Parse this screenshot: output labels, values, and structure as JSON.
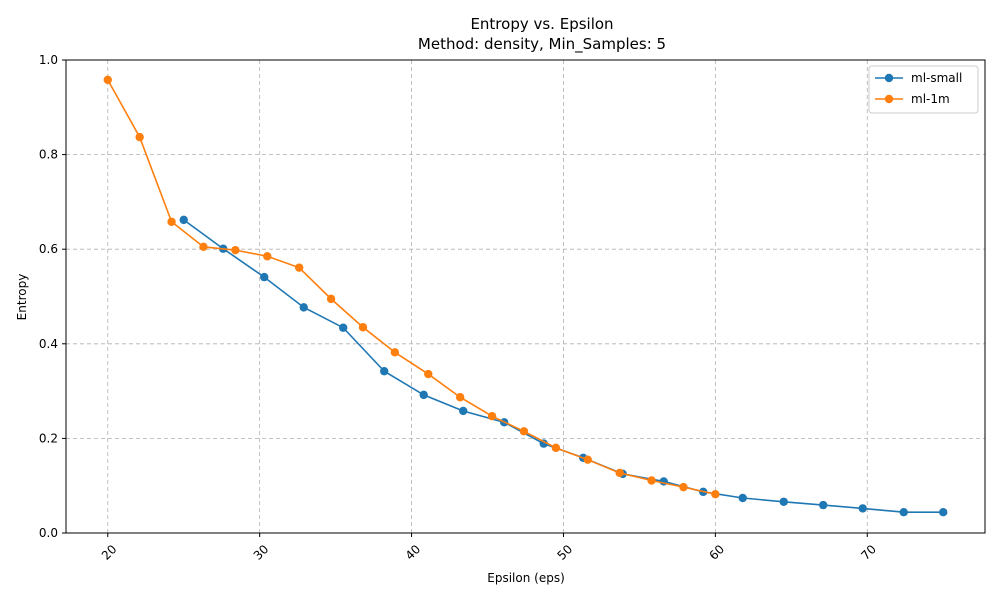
{
  "chart_data": {
    "type": "line",
    "title": "Entropy vs. Epsilon",
    "subtitle": "Method: density, Min_Samples: 5",
    "xlabel": "Epsilon (eps)",
    "ylabel": "Entropy",
    "xlim": [
      17.25,
      77.75
    ],
    "ylim": [
      0,
      1.0
    ],
    "xticks": [
      20,
      30,
      40,
      50,
      60,
      70
    ],
    "yticks": [
      0.0,
      0.2,
      0.4,
      0.6,
      0.8,
      1.0
    ],
    "grid": true,
    "legend_position": "top-right",
    "series": [
      {
        "name": "ml-small",
        "color": "#1f77b4",
        "x": [
          25.0,
          27.6,
          30.3,
          32.9,
          35.5,
          38.2,
          40.8,
          43.4,
          46.1,
          48.7,
          51.3,
          53.9,
          56.6,
          59.2,
          61.8,
          64.5,
          67.1,
          69.7,
          72.4,
          75.0
        ],
        "y": [
          0.662,
          0.601,
          0.541,
          0.477,
          0.434,
          0.342,
          0.292,
          0.258,
          0.234,
          0.189,
          0.159,
          0.125,
          0.109,
          0.087,
          0.074,
          0.066,
          0.059,
          0.052,
          0.044,
          0.044
        ]
      },
      {
        "name": "ml-1m",
        "color": "#ff7f0e",
        "x": [
          20.0,
          22.1,
          24.2,
          26.3,
          28.4,
          30.5,
          32.6,
          34.7,
          36.8,
          38.9,
          41.1,
          43.2,
          45.3,
          47.4,
          49.5,
          51.6,
          53.7,
          55.8,
          57.9,
          60.0
        ],
        "y": [
          0.958,
          0.837,
          0.658,
          0.605,
          0.598,
          0.585,
          0.561,
          0.495,
          0.435,
          0.382,
          0.336,
          0.287,
          0.247,
          0.215,
          0.18,
          0.155,
          0.127,
          0.111,
          0.097,
          0.082
        ]
      }
    ]
  }
}
